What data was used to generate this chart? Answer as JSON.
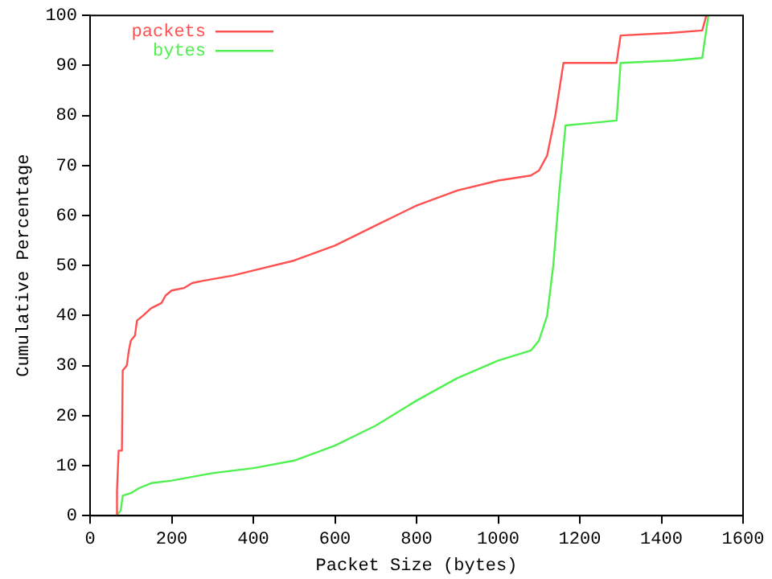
{
  "chart_data": {
    "type": "line",
    "xlabel": "Packet Size (bytes)",
    "ylabel": "Cumulative Percentage",
    "xlim": [
      0,
      1600
    ],
    "ylim": [
      0,
      100
    ],
    "xticks": [
      0,
      200,
      400,
      600,
      800,
      1000,
      1200,
      1400,
      1600
    ],
    "yticks": [
      0,
      10,
      20,
      30,
      40,
      50,
      60,
      70,
      80,
      90,
      100
    ],
    "grid": false,
    "legend": "top left",
    "marker": "none",
    "line_style": "solid",
    "series": [
      {
        "name": "packets",
        "color": "#ff5050",
        "x": [
          64,
          66,
          70,
          78,
          80,
          90,
          95,
          100,
          110,
          115,
          130,
          150,
          175,
          185,
          200,
          230,
          250,
          280,
          350,
          400,
          500,
          600,
          700,
          800,
          900,
          1000,
          1080,
          1100,
          1120,
          1140,
          1160,
          1290,
          1300,
          1420,
          1500,
          1510
        ],
        "values": [
          0,
          5,
          13,
          13,
          29,
          30,
          33,
          35,
          36,
          39,
          40,
          41.5,
          42.5,
          44,
          45,
          45.5,
          46.5,
          47,
          48,
          49,
          51,
          54,
          58,
          62,
          65,
          67,
          68,
          69,
          72,
          80,
          90.5,
          90.5,
          96,
          96.5,
          97,
          100
        ]
      },
      {
        "name": "bytes",
        "color": "#50f050",
        "x": [
          64,
          75,
          80,
          100,
          120,
          150,
          200,
          300,
          400,
          500,
          600,
          700,
          800,
          900,
          1000,
          1080,
          1100,
          1120,
          1135,
          1150,
          1165,
          1230,
          1290,
          1300,
          1430,
          1500,
          1515
        ],
        "values": [
          0,
          1,
          4,
          4.5,
          5.5,
          6.5,
          7,
          8.5,
          9.5,
          11,
          14,
          18,
          23,
          27.5,
          31,
          33,
          35,
          40,
          50,
          65,
          78,
          78.5,
          79,
          90.5,
          91,
          91.5,
          100
        ]
      }
    ]
  }
}
